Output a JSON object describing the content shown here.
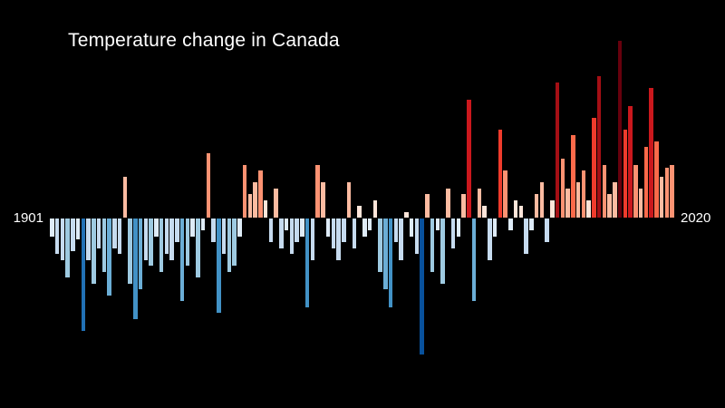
{
  "colors": {
    "background": "#000000",
    "text": "#ffffff"
  },
  "chart_data": {
    "type": "bar",
    "title": "Temperature change in Canada",
    "x_start_label": "1901",
    "x_end_label": "2020",
    "year_start": 1901,
    "year_end": 2020,
    "baseline": 0,
    "ylim": [
      -2.6,
      3.2
    ],
    "grid": false,
    "legend": false,
    "values": [
      -0.3,
      -0.6,
      -0.7,
      -1.0,
      -0.55,
      -0.35,
      -1.9,
      -0.7,
      -1.1,
      -0.5,
      -0.9,
      -1.3,
      -0.5,
      -0.6,
      0.7,
      -1.1,
      -1.7,
      -1.2,
      -0.7,
      -0.8,
      -0.3,
      -0.9,
      -0.6,
      -0.7,
      -0.4,
      -1.4,
      -0.8,
      -0.3,
      -1.0,
      -0.2,
      1.1,
      -0.4,
      -1.6,
      -0.6,
      -0.9,
      -0.8,
      -0.3,
      0.9,
      0.4,
      0.6,
      0.8,
      0.3,
      -0.4,
      0.5,
      -0.5,
      -0.2,
      -0.6,
      -0.4,
      -0.3,
      -1.5,
      -0.7,
      0.9,
      0.6,
      -0.3,
      -0.5,
      -0.7,
      -0.4,
      0.6,
      -0.5,
      0.2,
      -0.3,
      -0.2,
      0.3,
      -0.9,
      -1.2,
      -1.5,
      -0.4,
      -0.7,
      0.1,
      -0.3,
      -0.6,
      -2.3,
      0.4,
      -0.9,
      -0.2,
      -1.1,
      0.5,
      -0.5,
      -0.3,
      0.4,
      2.0,
      -1.4,
      0.5,
      0.2,
      -0.7,
      -0.3,
      1.5,
      0.8,
      -0.2,
      0.3,
      0.2,
      -0.6,
      -0.2,
      0.4,
      0.6,
      -0.4,
      0.3,
      2.3,
      1.0,
      0.5,
      1.4,
      0.6,
      0.8,
      0.3,
      1.7,
      2.4,
      0.9,
      0.4,
      0.6,
      3.0,
      1.5,
      1.9,
      0.9,
      0.5,
      1.2,
      2.2,
      1.3,
      0.7,
      0.85,
      0.9
    ],
    "palette": {
      "max_abs": 3.0,
      "positive": [
        "#fee5d9",
        "#fcbba1",
        "#fc9272",
        "#fb6a4a",
        "#ef3b2c",
        "#cb181d",
        "#a50f15",
        "#67000d"
      ],
      "negative": [
        "#deebf7",
        "#c6dbef",
        "#9ecae1",
        "#6baed6",
        "#4292c6",
        "#2171b5",
        "#08519c",
        "#08306b"
      ]
    }
  }
}
